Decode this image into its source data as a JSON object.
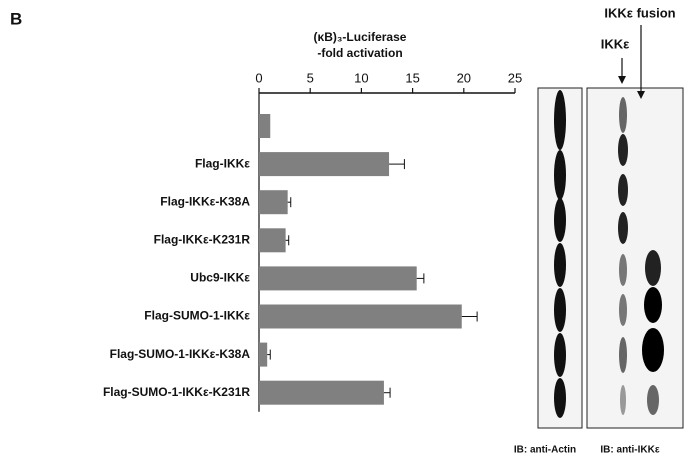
{
  "chart_data": {
    "type": "bar",
    "orientation": "horizontal",
    "panel_label": "B",
    "x_label": [
      "(κB)₃-Luciferase",
      "-fold activation"
    ],
    "categories": [
      null,
      "Flag-IKKε",
      "Flag-IKKε-K38A",
      "Flag-IKKε-K231R",
      "Ubc9-IKKε",
      "Flag-SUMO-1-IKKε",
      "Flag-SUMO-1-IKKε-K38A",
      "Flag-SUMO-1-IKKε-K231R"
    ],
    "values": [
      1.1,
      12.7,
      2.8,
      2.6,
      15.4,
      19.8,
      0.8,
      12.2
    ],
    "errors": [
      0,
      1.5,
      0.3,
      0.3,
      0.7,
      1.5,
      0.3,
      0.6
    ],
    "color": "#808080",
    "xlim": [
      0,
      25
    ],
    "xticks": [
      0,
      5,
      10,
      15,
      20,
      25
    ],
    "grid": false,
    "annotations": [
      "IKKε fusion",
      "IKKε",
      "IB: anti-Actin",
      "IB: anti-IKKε"
    ]
  }
}
